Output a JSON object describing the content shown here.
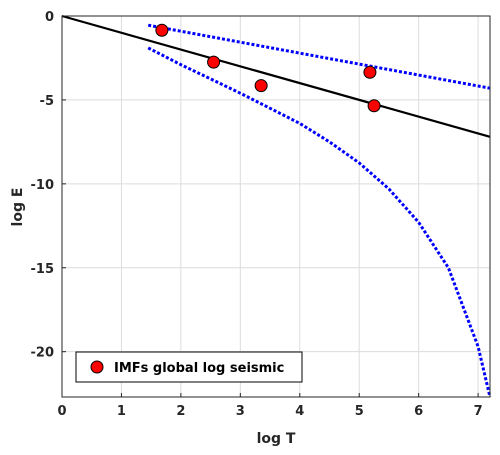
{
  "chart_data": {
    "type": "scatter",
    "title": "",
    "xlabel": "log T",
    "ylabel": "log E",
    "xlim": [
      0,
      7.2
    ],
    "ylim": [
      -22.7,
      0
    ],
    "x_ticks": [
      0,
      1,
      2,
      3,
      4,
      5,
      6,
      7
    ],
    "y_ticks": [
      0,
      -5,
      -10,
      -15,
      -20
    ],
    "grid": true,
    "legend_position": "bottom-left",
    "colors": {
      "points": "#ff0000",
      "point_edge": "#000000",
      "fit_line": "#000000",
      "bound_lines": "#0000ff",
      "grid": "#dcdcdc",
      "axes": "#262626"
    },
    "series": [
      {
        "name": "IMFs global log seismic",
        "kind": "points",
        "points": [
          {
            "x": 1.68,
            "y": -0.85
          },
          {
            "x": 2.55,
            "y": -2.75
          },
          {
            "x": 3.35,
            "y": -4.15
          },
          {
            "x": 5.18,
            "y": -3.35
          },
          {
            "x": 5.25,
            "y": -5.35
          }
        ]
      },
      {
        "kind": "line",
        "style": "solid",
        "points": [
          {
            "x": 0,
            "y": 0
          },
          {
            "x": 7.2,
            "y": -7.2
          }
        ]
      },
      {
        "kind": "line",
        "style": "dotted",
        "points": [
          {
            "x": 1.45,
            "y": -0.55
          },
          {
            "x": 7.2,
            "y": -4.3
          }
        ]
      },
      {
        "kind": "line",
        "style": "dotted",
        "points": [
          {
            "x": 1.45,
            "y": -1.9
          },
          {
            "x": 2.0,
            "y": -2.9
          },
          {
            "x": 2.5,
            "y": -3.75
          },
          {
            "x": 3.0,
            "y": -4.6
          },
          {
            "x": 3.5,
            "y": -5.5
          },
          {
            "x": 4.0,
            "y": -6.4
          },
          {
            "x": 4.5,
            "y": -7.5
          },
          {
            "x": 5.0,
            "y": -8.75
          },
          {
            "x": 5.5,
            "y": -10.3
          },
          {
            "x": 6.0,
            "y": -12.3
          },
          {
            "x": 6.5,
            "y": -15.0
          },
          {
            "x": 7.0,
            "y": -19.7
          },
          {
            "x": 7.2,
            "y": -22.7
          }
        ]
      }
    ]
  }
}
